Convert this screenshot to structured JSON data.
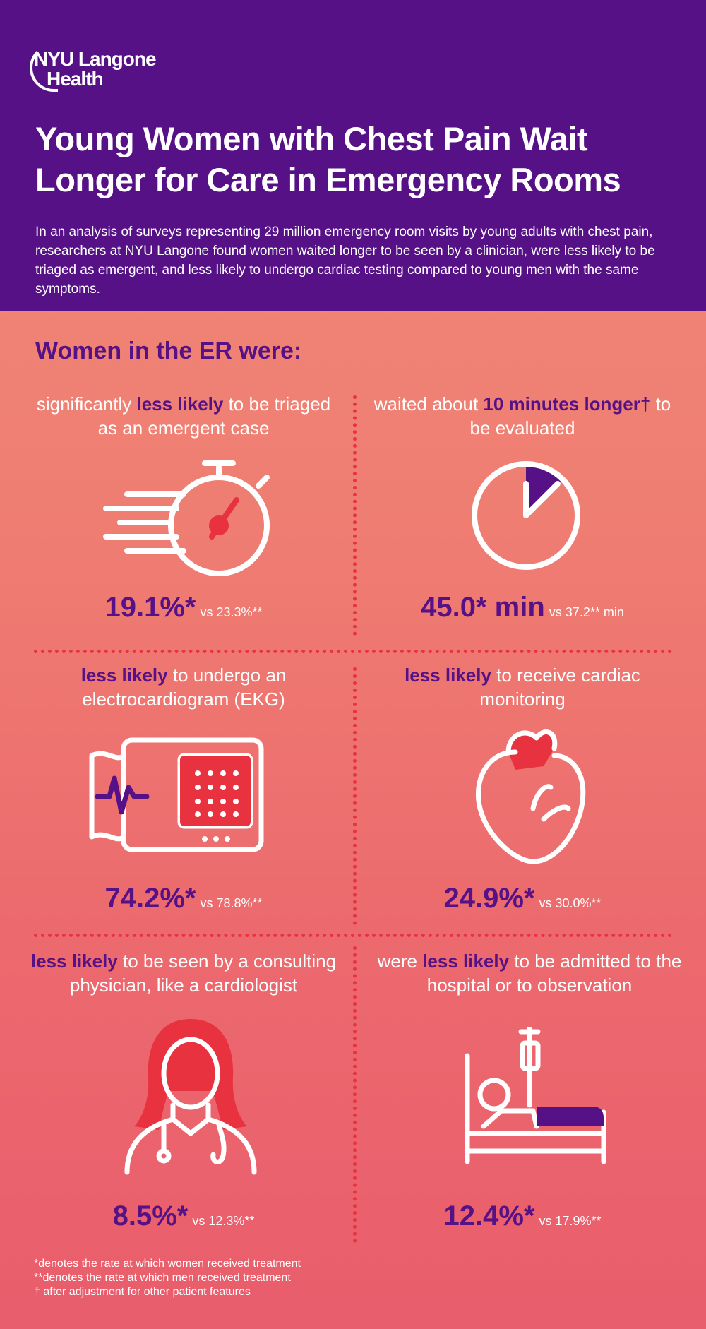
{
  "logo": {
    "line1": "NYU Langone",
    "line2": "Health"
  },
  "title": "Young Women with Chest Pain Wait Longer for Care in Emergency Rooms",
  "intro": "In an analysis of surveys representing 29 million emergency room visits by young adults with chest pain, researchers at NYU Langone found women waited longer to be seen by a clinician, were less likely to be triaged as emergent, and less likely to undergo cardiac testing compared to young men with the same symptoms.",
  "section_heading": "Women in the ER were:",
  "colors": {
    "purple": "#561186",
    "red": "#e8323f",
    "white": "#ffffff"
  },
  "cells": [
    {
      "pre": "significantly ",
      "bold": "less likely",
      "post": " to be triaged as an emergent case",
      "women": "19.1%*",
      "men": "vs 23.3%**",
      "icon": "stopwatch-icon"
    },
    {
      "pre": "waited about ",
      "bold": "10 minutes longer†",
      "post": " to be evaluated",
      "women": "45.0* min",
      "men": "vs 37.2** min",
      "icon": "clock-icon"
    },
    {
      "pre": "",
      "bold": "less likely",
      "post": " to undergo an electrocardiogram (EKG)",
      "women": "74.2%*",
      "men": "vs 78.8%**",
      "icon": "ekg-machine-icon"
    },
    {
      "pre": "",
      "bold": "less likely",
      "post": " to receive cardiac monitoring",
      "women": "24.9%*",
      "men": "vs 30.0%**",
      "icon": "heart-icon"
    },
    {
      "pre": "",
      "bold": "less likely",
      "post": " to be seen by a consulting physician, like a cardiologist",
      "women": "8.5%*",
      "men": "vs 12.3%**",
      "icon": "doctor-icon"
    },
    {
      "pre": "were ",
      "bold": "less likely",
      "post": " to be admitted to the hospital or to observation",
      "women": "12.4%*",
      "men": "vs 17.9%**",
      "icon": "hospital-bed-icon"
    }
  ],
  "footnotes": [
    "*denotes the rate at which women received treatment",
    "**denotes the rate at which men received treatment",
    "† after adjustment for other patient features"
  ]
}
